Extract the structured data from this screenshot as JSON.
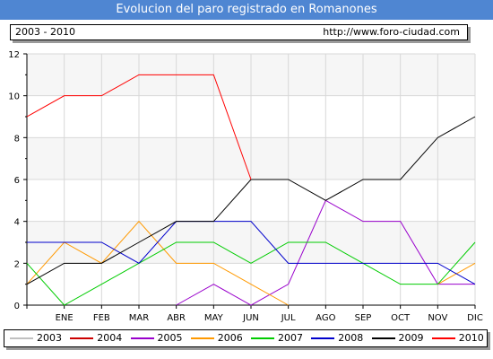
{
  "header": {
    "title": "Evolucion del paro registrado en Romanones",
    "range": "2003 - 2010",
    "url": "http://www.foro-ciudad.com"
  },
  "chart_data": {
    "type": "line",
    "title": "Evolucion del paro registrado en Romanones",
    "categories": [
      "",
      "ENE",
      "FEB",
      "MAR",
      "ABR",
      "MAY",
      "JUN",
      "JUL",
      "AGO",
      "SEP",
      "OCT",
      "NOV",
      "DIC"
    ],
    "y_ticks": [
      "0",
      "2",
      "4",
      "6",
      "8",
      "10",
      "12"
    ],
    "ylim": [
      0,
      12
    ],
    "grid": true,
    "legend_position": "bottom",
    "series": [
      {
        "name": "2003",
        "color": "#c0c0c0",
        "values": [
          null,
          null,
          null,
          null,
          null,
          null,
          null,
          null,
          null,
          null,
          null,
          null,
          null
        ]
      },
      {
        "name": "2004",
        "color": "#cc0000",
        "values": [
          null,
          null,
          null,
          null,
          null,
          null,
          null,
          null,
          null,
          null,
          null,
          null,
          null
        ]
      },
      {
        "name": "2005",
        "color": "#9900cc",
        "values": [
          null,
          null,
          null,
          null,
          0,
          1,
          0,
          1,
          5,
          4,
          4,
          1,
          1
        ]
      },
      {
        "name": "2006",
        "color": "#ff9900",
        "values": [
          1,
          3,
          2,
          4,
          2,
          2,
          1,
          0,
          null,
          2,
          null,
          1,
          2
        ]
      },
      {
        "name": "2007",
        "color": "#00cc00",
        "values": [
          2,
          0,
          1,
          2,
          3,
          3,
          2,
          3,
          3,
          2,
          1,
          1,
          3
        ]
      },
      {
        "name": "2008",
        "color": "#0000cc",
        "values": [
          3,
          3,
          3,
          2,
          4,
          4,
          4,
          2,
          2,
          2,
          2,
          2,
          1
        ]
      },
      {
        "name": "2009",
        "color": "#000000",
        "values": [
          1,
          2,
          2,
          3,
          4,
          4,
          6,
          6,
          5,
          6,
          6,
          8,
          9
        ]
      },
      {
        "name": "2010",
        "color": "#ff0000",
        "values": [
          9,
          10,
          10,
          11,
          11,
          11,
          6,
          null,
          null,
          null,
          null,
          null,
          null
        ]
      }
    ]
  }
}
